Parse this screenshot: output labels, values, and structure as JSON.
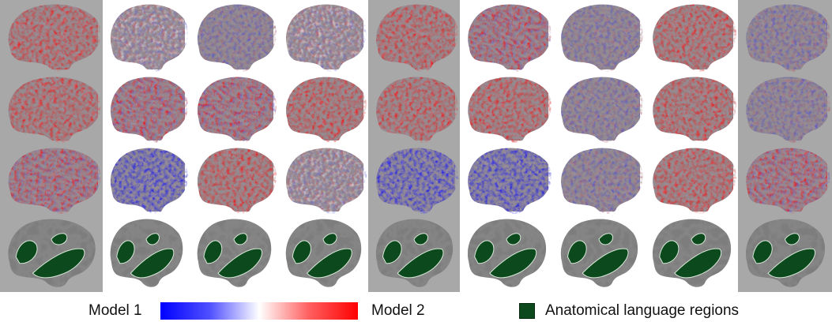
{
  "figure": {
    "rows": [
      [
        "red",
        "mixed",
        "mixed-blue",
        "mixed",
        "red",
        "mixed-red",
        "mixed-blue",
        "red",
        "mixed-blue"
      ],
      [
        "red",
        "mixed-red",
        "mixed-red",
        "red",
        "red",
        "red",
        "mixed-blue",
        "red",
        "mixed-blue"
      ],
      [
        "mixed-red",
        "blue",
        "red",
        "mixed",
        "blue",
        "blue",
        "mixed-blue",
        "red",
        "mixed-red"
      ],
      [
        "language",
        "language",
        "language",
        "language",
        "language",
        "language",
        "language",
        "language",
        "language"
      ]
    ],
    "grey_panel_columns": [
      0,
      4,
      8
    ],
    "colors": {
      "model1": "#0000ff",
      "model2": "#ff0000",
      "neutral": "#ffffff",
      "language_region": "#0c4a1e",
      "cortex": "#8c8c8c",
      "panel_grey": "#a8a8a8"
    }
  },
  "legend": {
    "model1_label": "Model 1",
    "model2_label": "Model 2",
    "region_label": "Anatomical language regions"
  }
}
